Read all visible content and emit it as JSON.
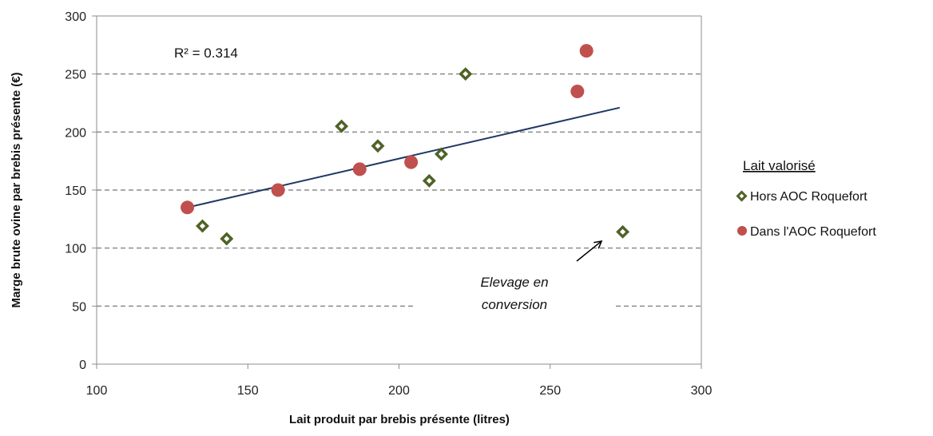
{
  "chart_data": {
    "type": "scatter",
    "title": "",
    "xlabel": "Lait produit par brebis présente (litres)",
    "ylabel": "Marge brute ovine par brebis présente (€)",
    "xlim": [
      100,
      300
    ],
    "ylim": [
      0,
      300
    ],
    "x_ticks": [
      "100",
      "150",
      "200",
      "250",
      "300"
    ],
    "y_ticks": [
      "0",
      "50",
      "100",
      "150",
      "200",
      "250",
      "300"
    ],
    "grid": "horizontal dashed",
    "legend": {
      "title": "Lait valorisé",
      "placement": "right",
      "entries": [
        "Hors AOC Roquefort",
        "Dans l'AOC Roquefort"
      ]
    },
    "series": [
      {
        "name": "Hors AOC Roquefort",
        "marker": "diamond",
        "color": "#4f6228",
        "points": [
          {
            "x": 135,
            "y": 119
          },
          {
            "x": 143,
            "y": 108
          },
          {
            "x": 181,
            "y": 205
          },
          {
            "x": 193,
            "y": 188
          },
          {
            "x": 210,
            "y": 158
          },
          {
            "x": 214,
            "y": 181
          },
          {
            "x": 222,
            "y": 250
          },
          {
            "x": 274,
            "y": 114
          }
        ]
      },
      {
        "name": "Dans l'AOC Roquefort",
        "marker": "circle",
        "color": "#c0504d",
        "points": [
          {
            "x": 130,
            "y": 135
          },
          {
            "x": 160,
            "y": 150
          },
          {
            "x": 187,
            "y": 168
          },
          {
            "x": 204,
            "y": 174
          },
          {
            "x": 259,
            "y": 235
          },
          {
            "x": 262,
            "y": 270
          }
        ]
      }
    ],
    "trendline": {
      "color": "#1f3864",
      "from": {
        "x": 130,
        "y": 135
      },
      "to": {
        "x": 273,
        "y": 221
      },
      "label": "R² = 0.314"
    },
    "annotations": [
      {
        "lines": [
          "Elevage en",
          "conversion"
        ],
        "italic": true,
        "arrow_to": {
          "x": 267,
          "y": 106
        }
      }
    ]
  }
}
